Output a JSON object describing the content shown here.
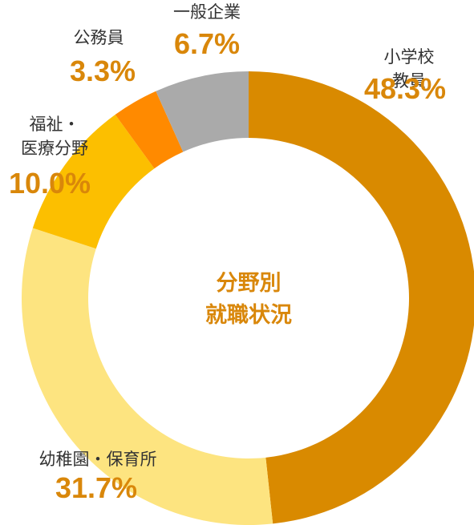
{
  "chart_data": {
    "type": "donut",
    "center_text": [
      "分野別",
      "就職状況"
    ],
    "categories": [
      "小学校教員",
      "幼稚園・保育所",
      "福祉・\n医療分野",
      "公務員",
      "一般企業"
    ],
    "values": [
      48.3,
      31.7,
      10.0,
      3.3,
      6.7
    ],
    "value_labels": [
      "48.3%",
      "31.7%",
      "10.0%",
      "3.3%",
      "6.7%"
    ],
    "colors": [
      "#d98a00",
      "#fde480",
      "#fcbf00",
      "#ff8a00",
      "#aaaaaa"
    ]
  }
}
